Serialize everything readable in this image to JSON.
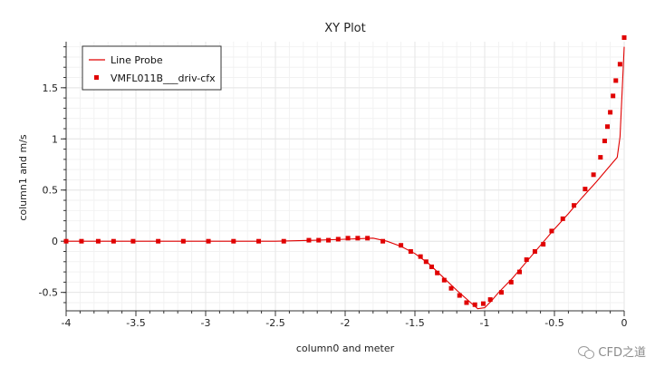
{
  "chart_data": {
    "type": "line",
    "title": "XY Plot",
    "xlabel": "column0 and meter",
    "ylabel": "column1 and m/s",
    "xlim": [
      -4,
      0
    ],
    "ylim": [
      -0.68,
      1.95
    ],
    "xticks": [
      -4,
      -3.5,
      -3,
      -2.5,
      -2,
      -1.5,
      -1,
      -0.5,
      0
    ],
    "xtick_labels": [
      "-4",
      "-3.5",
      "-3",
      "-2.5",
      "-2",
      "-1.5",
      "-1",
      "-0.5",
      "0"
    ],
    "yticks": [
      -0.5,
      0,
      0.5,
      1,
      1.5
    ],
    "ytick_labels": [
      "-0.5",
      "0",
      "0.5",
      "1",
      "1.5"
    ],
    "grid": true,
    "legend_position": "top-left",
    "colors": {
      "series": "#e00000",
      "grid": "#e6e6e6",
      "axis": "#333333"
    },
    "series": [
      {
        "name": "Line Probe",
        "style": "line",
        "x": [
          -4,
          -3.5,
          -3,
          -2.5,
          -2.2,
          -2.0,
          -1.8,
          -1.7,
          -1.6,
          -1.5,
          -1.4,
          -1.3,
          -1.2,
          -1.1,
          -1.05,
          -1.0,
          -0.95,
          -0.9,
          -0.8,
          -0.7,
          -0.6,
          -0.5,
          -0.4,
          -0.3,
          -0.2,
          -0.1,
          -0.05,
          -0.03,
          0
        ],
        "y": [
          0,
          0,
          0,
          0,
          0.01,
          0.02,
          0.03,
          0.0,
          -0.05,
          -0.12,
          -0.22,
          -0.35,
          -0.48,
          -0.6,
          -0.66,
          -0.65,
          -0.58,
          -0.5,
          -0.36,
          -0.2,
          -0.04,
          0.12,
          0.27,
          0.43,
          0.58,
          0.74,
          0.82,
          1.02,
          1.9
        ]
      },
      {
        "name": "VMFL011B___driv-cfx",
        "style": "markers",
        "x": [
          -4,
          -3.89,
          -3.77,
          -3.66,
          -3.52,
          -3.34,
          -3.16,
          -2.98,
          -2.8,
          -2.62,
          -2.44,
          -2.26,
          -2.19,
          -2.12,
          -2.05,
          -1.98,
          -1.91,
          -1.84,
          -1.73,
          -1.6,
          -1.53,
          -1.46,
          -1.42,
          -1.38,
          -1.34,
          -1.29,
          -1.24,
          -1.18,
          -1.13,
          -1.07,
          -1.01,
          -0.96,
          -0.88,
          -0.81,
          -0.75,
          -0.7,
          -0.64,
          -0.58,
          -0.52,
          -0.44,
          -0.36,
          -0.28,
          -0.22,
          -0.17,
          -0.14,
          -0.12,
          -0.1,
          -0.08,
          -0.06,
          -0.03,
          0
        ],
        "y": [
          0,
          0,
          0,
          0,
          0,
          0,
          0,
          0,
          0,
          0,
          0,
          0.01,
          0.01,
          0.01,
          0.02,
          0.03,
          0.03,
          0.03,
          0.0,
          -0.04,
          -0.1,
          -0.15,
          -0.2,
          -0.25,
          -0.31,
          -0.38,
          -0.46,
          -0.53,
          -0.6,
          -0.62,
          -0.61,
          -0.57,
          -0.5,
          -0.4,
          -0.3,
          -0.18,
          -0.1,
          -0.03,
          0.1,
          0.22,
          0.35,
          0.51,
          0.65,
          0.82,
          0.98,
          1.12,
          1.26,
          1.42,
          1.57,
          1.73,
          1.99
        ]
      }
    ]
  },
  "watermark": {
    "text": "CFD之道",
    "icon": "wechat-icon"
  }
}
